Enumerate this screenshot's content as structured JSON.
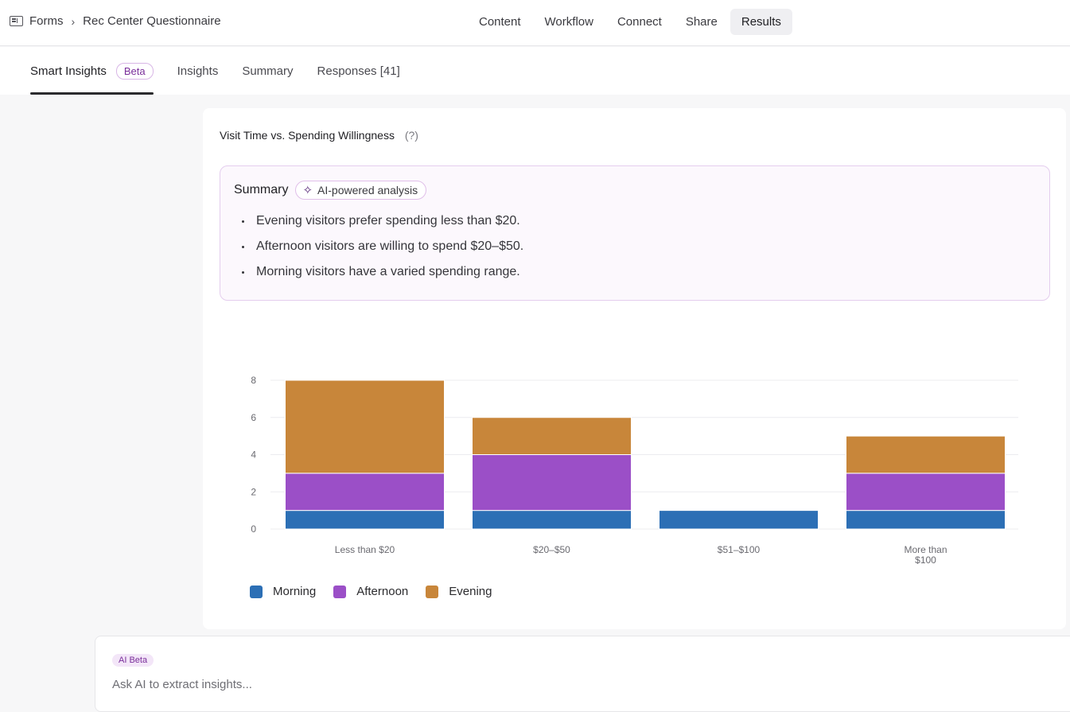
{
  "breadcrumb": {
    "root": "Forms",
    "current": "Rec Center Questionnaire"
  },
  "topnav": [
    {
      "label": "Content"
    },
    {
      "label": "Workflow"
    },
    {
      "label": "Connect"
    },
    {
      "label": "Share"
    },
    {
      "label": "Results",
      "active": true
    }
  ],
  "subtabs": {
    "smart_insights": "Smart Insights",
    "beta_badge": "Beta",
    "insights": "Insights",
    "summary": "Summary",
    "responses": "Responses [41]"
  },
  "card": {
    "title": "Visit Time vs. Spending Willingness",
    "help": "(?)",
    "summary_label": "Summary",
    "ai_badge": "AI-powered analysis",
    "bullets": [
      "Evening visitors prefer spending less than $20.",
      "Afternoon visitors are willing to spend $20–$50.",
      "Morning visitors have a varied spending range."
    ]
  },
  "chart_data": {
    "type": "bar",
    "stacked": true,
    "categories": [
      [
        "Less than $20"
      ],
      [
        "$20–$50"
      ],
      [
        "$51–$100"
      ],
      [
        "More than",
        "$100"
      ]
    ],
    "series": [
      {
        "name": "Morning",
        "color": "#2c6fb5",
        "values": [
          1,
          1,
          1,
          1
        ]
      },
      {
        "name": "Afternoon",
        "color": "#9b4fc7",
        "values": [
          2,
          3,
          0,
          2
        ]
      },
      {
        "name": "Evening",
        "color": "#c8863a",
        "values": [
          5,
          2,
          0,
          2
        ]
      }
    ],
    "ylim": [
      0,
      8
    ],
    "yticks": [
      "0",
      "2",
      "4",
      "6",
      "8"
    ],
    "grid": true,
    "legend": "bottom-left"
  },
  "ai_bar": {
    "badge": "AI Beta",
    "placeholder": "Ask AI to extract insights..."
  }
}
